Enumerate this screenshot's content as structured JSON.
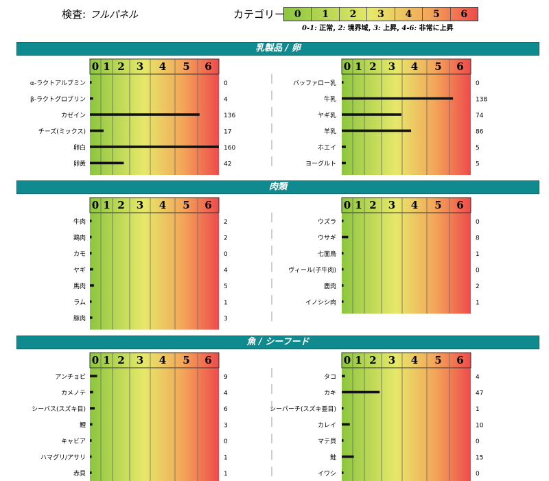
{
  "header": {
    "test_label": "検査:",
    "test_value": "フルパネル",
    "category_label": "カテゴリー:",
    "category_scale": [
      "0",
      "1",
      "2",
      "3",
      "4",
      "5",
      "6"
    ],
    "legend_note": [
      {
        "k": "0-1:",
        "v": " 正常, "
      },
      {
        "k": "2:",
        "v": " 境界域, "
      },
      {
        "k": "3:",
        "v": " 上昇, "
      },
      {
        "k": "4-6:",
        "v": " 非常に上昇"
      }
    ]
  },
  "colors": {
    "section_bg": "#0f8a8f",
    "grade_low": "#8cc63f",
    "grade_mid": "#e6e86a",
    "grade_high": "#ee4b4b",
    "bar": "#111111"
  },
  "chart_data": [
    {
      "type": "bar",
      "title": "乳製品 / 卵",
      "panels": [
        {
          "categories": [
            "α-ラクトアルブミン",
            "β-ラクトグロブリン",
            "カゼイン",
            "チーズ(ミックス)",
            "卵白",
            "卵黄"
          ],
          "values": [
            0,
            4,
            136,
            17,
            160,
            42
          ]
        },
        {
          "categories": [
            "バッファロー乳",
            "牛乳",
            "ヤギ乳",
            "羊乳",
            "ホエイ",
            "ヨーグルト"
          ],
          "values": [
            0,
            138,
            74,
            86,
            5,
            5
          ]
        }
      ]
    },
    {
      "type": "bar",
      "title": "肉類",
      "panels": [
        {
          "categories": [
            "牛肉",
            "鶏肉",
            "カモ",
            "ヤギ",
            "馬肉",
            "ラム",
            "豚肉"
          ],
          "values": [
            2,
            2,
            0,
            4,
            5,
            1,
            3
          ]
        },
        {
          "categories": [
            "ウズラ",
            "ウサギ",
            "七面鳥",
            "ヴィール(子牛肉)",
            "鹿肉",
            "イノシシ肉"
          ],
          "values": [
            0,
            8,
            1,
            0,
            2,
            1
          ]
        }
      ]
    },
    {
      "type": "bar",
      "title": "魚 / シーフード",
      "panels": [
        {
          "categories": [
            "アンチョビ",
            "カメノテ",
            "シーバス(スズキ目)",
            "鯉",
            "キャビア",
            "ハマグリ/アサリ",
            "赤貝"
          ],
          "values": [
            9,
            4,
            6,
            3,
            0,
            1,
            1
          ]
        },
        {
          "categories": [
            "タコ",
            "カキ",
            "シーパーチ(スズキ亜目)",
            "カレイ",
            "マテ貝",
            "鮭",
            "イワシ"
          ],
          "values": [
            4,
            47,
            1,
            10,
            0,
            15,
            0
          ]
        }
      ]
    }
  ]
}
